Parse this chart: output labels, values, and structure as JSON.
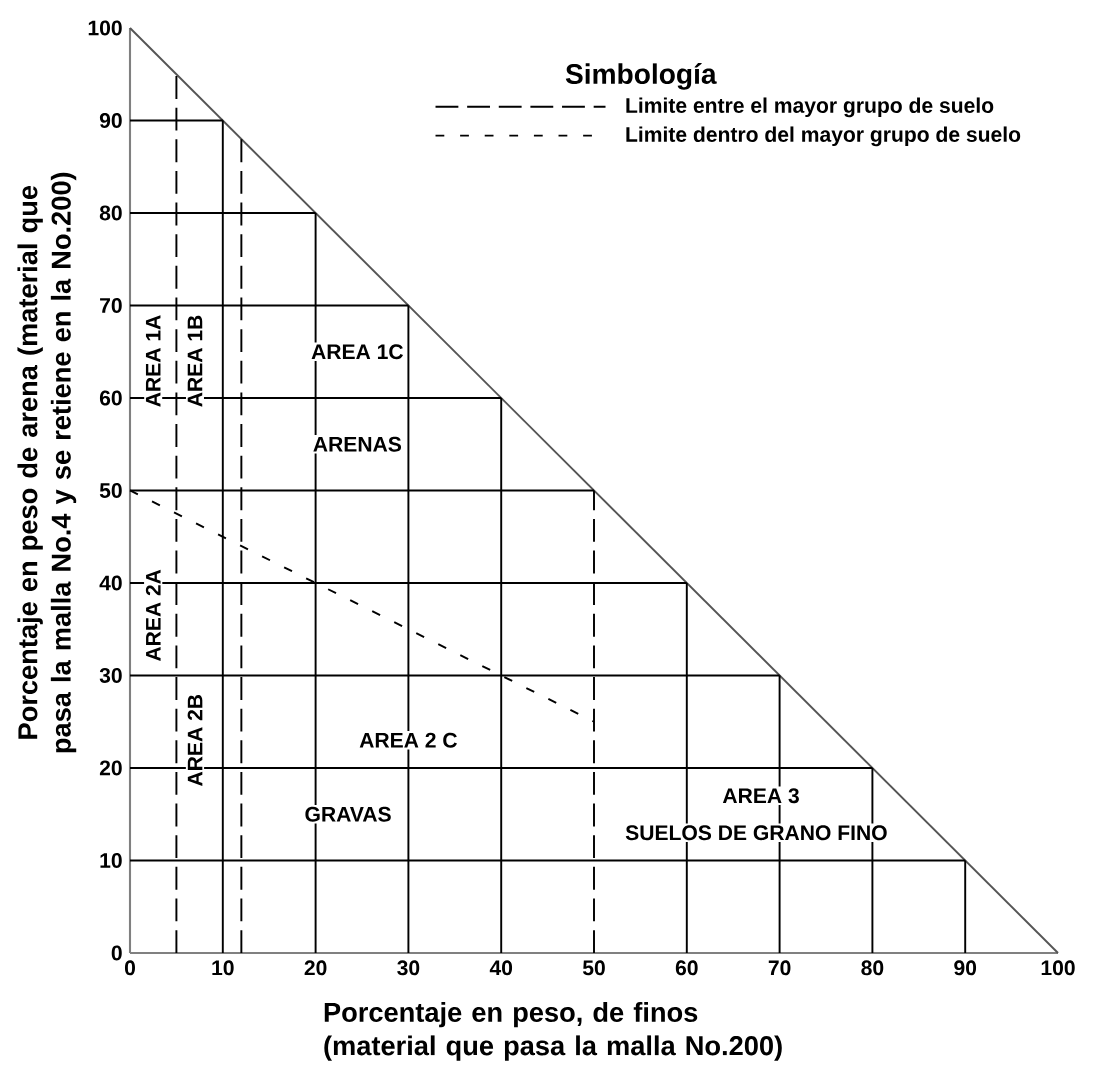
{
  "chart_data": {
    "type": "line",
    "xlabel": "Porcentaje en peso, de finos (material que pasa la malla No.200)",
    "ylabel": "Porcentaje en peso de arena (material que pasa la malla No.4 y se retiene en la No.200)",
    "legend_title": "Simbología",
    "legend": "top right",
    "xlim": [
      0,
      100
    ],
    "ylim": [
      0,
      100
    ],
    "xticks": [
      0,
      10,
      20,
      30,
      40,
      50,
      60,
      70,
      80,
      90,
      100
    ],
    "yticks": [
      0,
      10,
      20,
      30,
      40,
      50,
      60,
      70,
      80,
      90,
      100
    ],
    "series": [
      {
        "color": "#555555",
        "line_style": "solid",
        "x": [
          0,
          100
        ],
        "values": [
          100,
          0
        ]
      },
      {
        "color": "#000000",
        "line_style": "solid",
        "x": [
          0,
          90
        ],
        "values": [
          10,
          10
        ]
      },
      {
        "color": "#000000",
        "line_style": "solid",
        "x": [
          0,
          80
        ],
        "values": [
          20,
          20
        ]
      },
      {
        "color": "#000000",
        "line_style": "solid",
        "x": [
          0,
          70
        ],
        "values": [
          30,
          30
        ]
      },
      {
        "color": "#000000",
        "line_style": "solid",
        "x": [
          0,
          60
        ],
        "values": [
          40,
          40
        ]
      },
      {
        "color": "#000000",
        "line_style": "solid",
        "x": [
          0,
          50
        ],
        "values": [
          50,
          50
        ]
      },
      {
        "color": "#000000",
        "line_style": "solid",
        "x": [
          0,
          40
        ],
        "values": [
          60,
          60
        ]
      },
      {
        "color": "#000000",
        "line_style": "solid",
        "x": [
          0,
          30
        ],
        "values": [
          70,
          70
        ]
      },
      {
        "color": "#000000",
        "line_style": "solid",
        "x": [
          0,
          20
        ],
        "values": [
          80,
          80
        ]
      },
      {
        "color": "#000000",
        "line_style": "solid",
        "x": [
          0,
          10
        ],
        "values": [
          90,
          90
        ]
      },
      {
        "color": "#000000",
        "line_style": "solid",
        "x": [
          10,
          10
        ],
        "values": [
          0,
          90
        ]
      },
      {
        "color": "#000000",
        "line_style": "solid",
        "x": [
          20,
          20
        ],
        "values": [
          0,
          80
        ]
      },
      {
        "color": "#000000",
        "line_style": "solid",
        "x": [
          30,
          30
        ],
        "values": [
          0,
          70
        ]
      },
      {
        "color": "#000000",
        "line_style": "solid",
        "x": [
          40,
          40
        ],
        "values": [
          0,
          60
        ]
      },
      {
        "color": "#000000",
        "line_style": "solid",
        "x": [
          60,
          60
        ],
        "values": [
          0,
          40
        ]
      },
      {
        "color": "#000000",
        "line_style": "solid",
        "x": [
          70,
          70
        ],
        "values": [
          0,
          30
        ]
      },
      {
        "color": "#000000",
        "line_style": "solid",
        "x": [
          80,
          80
        ],
        "values": [
          0,
          20
        ]
      },
      {
        "color": "#000000",
        "line_style": "solid",
        "x": [
          90,
          90
        ],
        "values": [
          0,
          10
        ]
      },
      {
        "name": "Limite entre el mayor grupo de suelo",
        "color": "#000000",
        "line_style": "dashed",
        "x": [
          50,
          50
        ],
        "values": [
          0,
          50
        ]
      },
      {
        "color": "#000000",
        "line_style": "dashed",
        "x": [
          5,
          5
        ],
        "values": [
          0,
          95
        ]
      },
      {
        "color": "#000000",
        "line_style": "dashed",
        "x": [
          12,
          12
        ],
        "values": [
          0,
          88
        ]
      },
      {
        "name": "Limite dentro del mayor grupo de suelo",
        "color": "#000000",
        "line_style": "dotted",
        "x": [
          0,
          50
        ],
        "values": [
          50,
          25
        ]
      }
    ],
    "annotations": [
      "AREA 1A",
      "AREA 1B",
      "AREA 1C",
      "ARENAS",
      "AREA 2A",
      "AREA 2B",
      "AREA 2 C",
      "GRAVAS",
      "AREA 3",
      "SUELOS DE GRANO FINO"
    ]
  }
}
